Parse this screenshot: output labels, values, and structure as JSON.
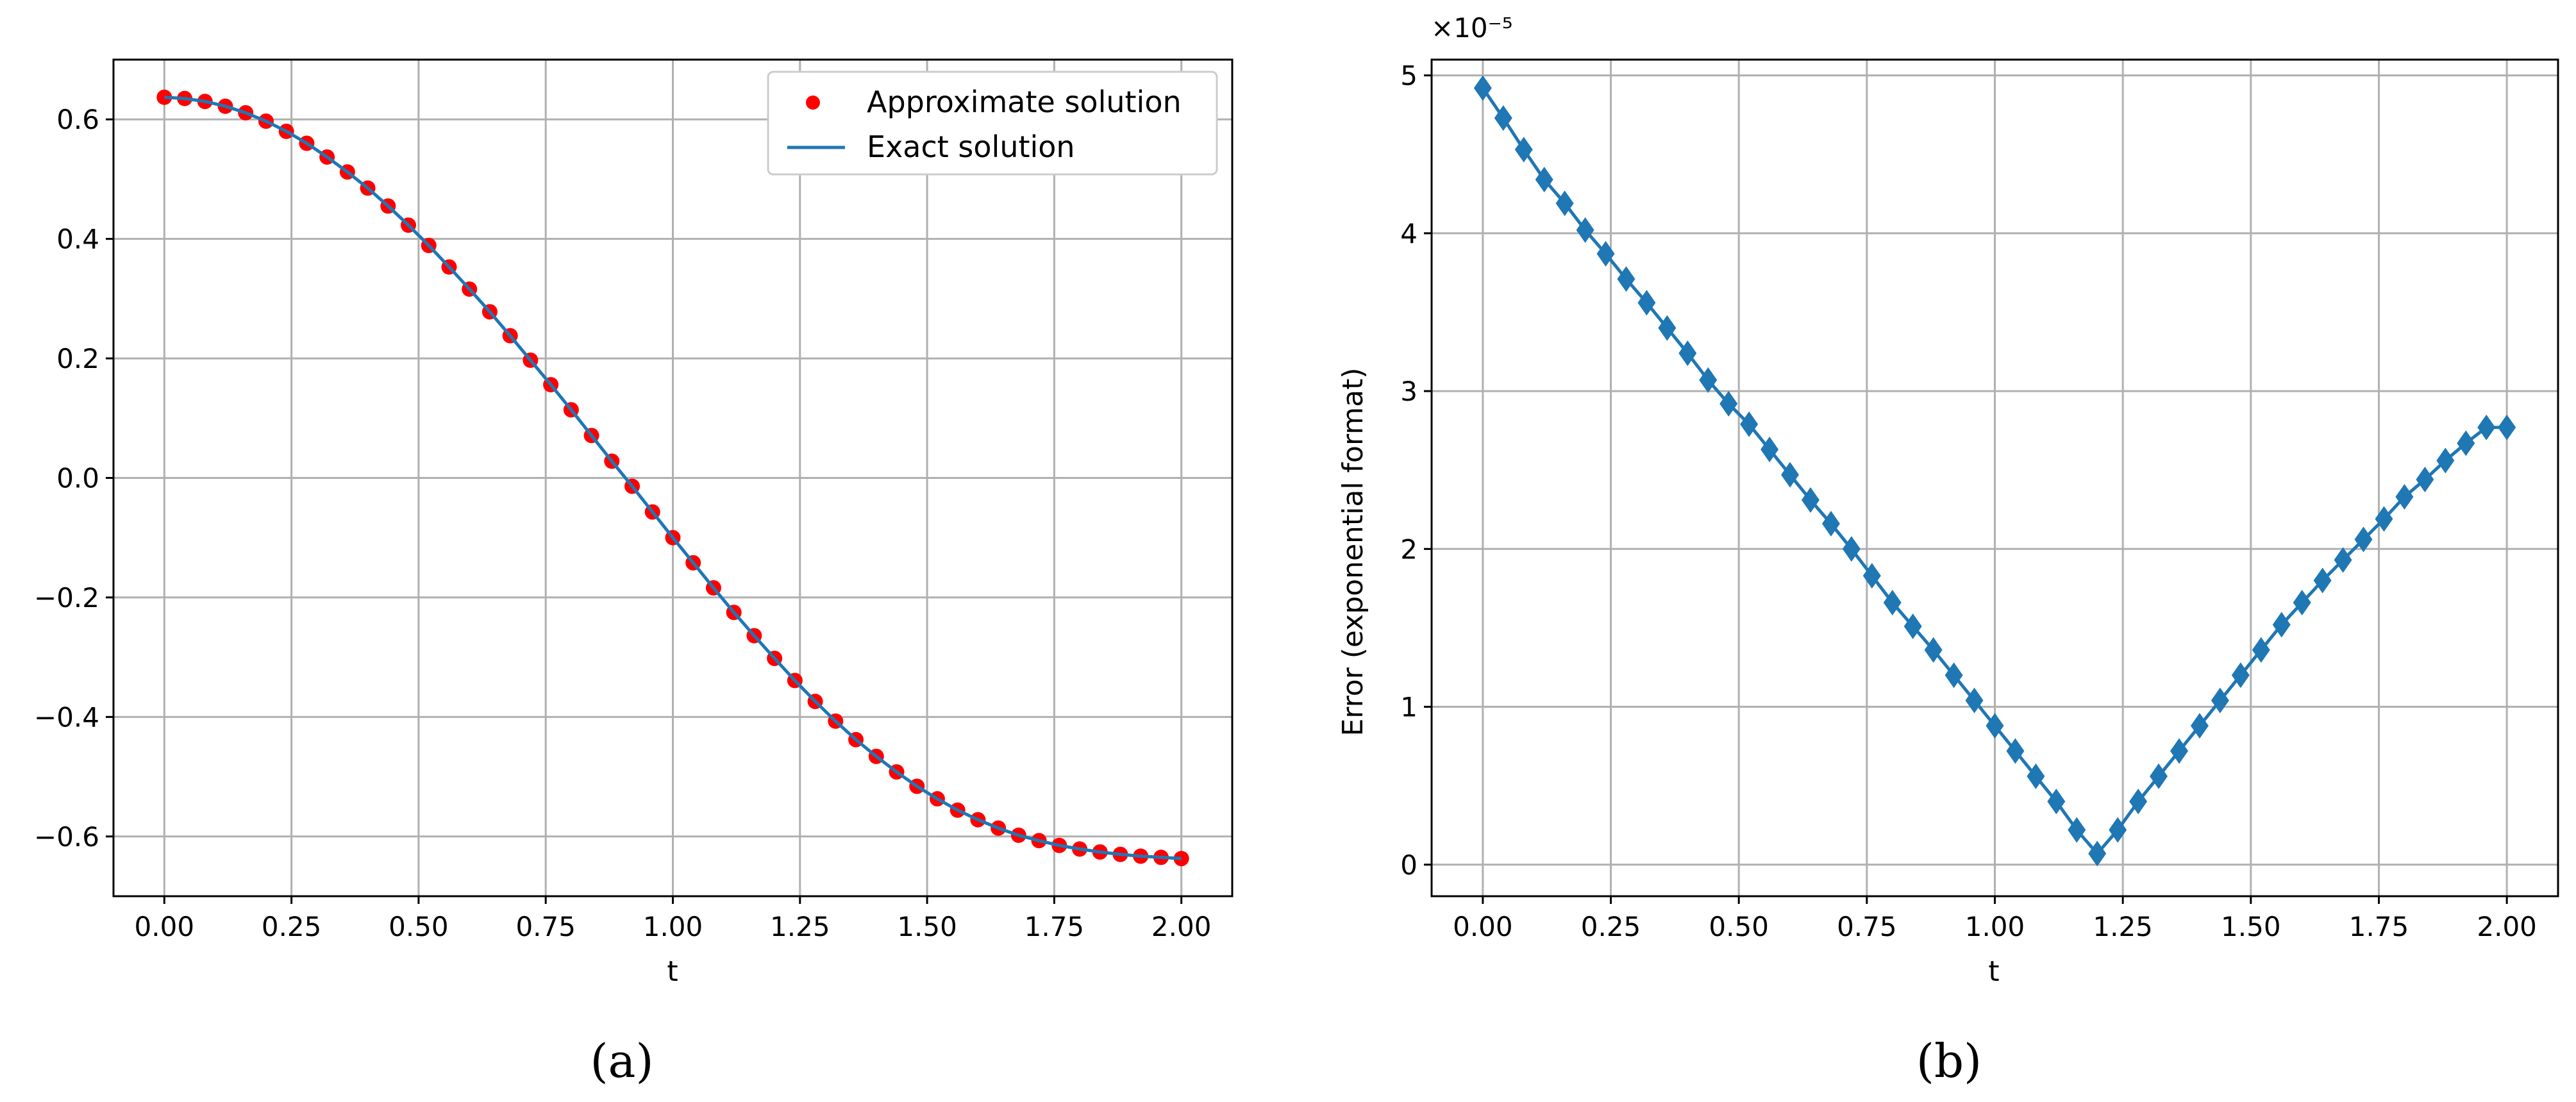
{
  "chart_data": [
    {
      "type": "scatter",
      "panel": "a",
      "caption": "(a)",
      "xlabel": "t",
      "ylabel": "",
      "xlim": [
        -0.1,
        2.1
      ],
      "ylim": [
        -0.7,
        0.7
      ],
      "xticks": [
        "0.00",
        "0.25",
        "0.50",
        "0.75",
        "1.00",
        "1.25",
        "1.50",
        "1.75",
        "2.00"
      ],
      "yticks": [
        "0.6",
        "0.4",
        "0.2",
        "0.0",
        "−0.2",
        "−0.4",
        "−0.6"
      ],
      "grid": true,
      "legend_position": "top-right",
      "series": [
        {
          "name": "Approximate solution",
          "kind": "points",
          "color": "#ff0000",
          "x": [
            0.0,
            0.04,
            0.08,
            0.12,
            0.16,
            0.2,
            0.24,
            0.28,
            0.32,
            0.36,
            0.4,
            0.44,
            0.48,
            0.52,
            0.56,
            0.6,
            0.64,
            0.68,
            0.72,
            0.76,
            0.8,
            0.84,
            0.88,
            0.92,
            0.96,
            1.0,
            1.04,
            1.08,
            1.12,
            1.16,
            1.2,
            1.24,
            1.28,
            1.32,
            1.36,
            1.4,
            1.44,
            1.48,
            1.52,
            1.56,
            1.6,
            1.64,
            1.68,
            1.72,
            1.76,
            1.8,
            1.84,
            1.88,
            1.92,
            1.96,
            2.0
          ],
          "y": [
            0.637,
            0.635,
            0.63,
            0.622,
            0.611,
            0.597,
            0.58,
            0.56,
            0.537,
            0.512,
            0.485,
            0.455,
            0.423,
            0.389,
            0.353,
            0.316,
            0.278,
            0.238,
            0.197,
            0.156,
            0.114,
            0.071,
            0.028,
            -0.014,
            -0.057,
            -0.1,
            -0.142,
            -0.184,
            -0.225,
            -0.264,
            -0.302,
            -0.339,
            -0.374,
            -0.407,
            -0.438,
            -0.466,
            -0.492,
            -0.516,
            -0.537,
            -0.556,
            -0.572,
            -0.586,
            -0.598,
            -0.607,
            -0.615,
            -0.621,
            -0.626,
            -0.63,
            -0.633,
            -0.635,
            -0.637
          ]
        },
        {
          "name": "Exact solution",
          "kind": "line",
          "color": "#1f77b4",
          "x": [
            0.0,
            0.04,
            0.08,
            0.12,
            0.16,
            0.2,
            0.24,
            0.28,
            0.32,
            0.36,
            0.4,
            0.44,
            0.48,
            0.52,
            0.56,
            0.6,
            0.64,
            0.68,
            0.72,
            0.76,
            0.8,
            0.84,
            0.88,
            0.92,
            0.96,
            1.0,
            1.04,
            1.08,
            1.12,
            1.16,
            1.2,
            1.24,
            1.28,
            1.32,
            1.36,
            1.4,
            1.44,
            1.48,
            1.52,
            1.56,
            1.6,
            1.64,
            1.68,
            1.72,
            1.76,
            1.8,
            1.84,
            1.88,
            1.92,
            1.96,
            2.0
          ],
          "y": [
            0.637,
            0.635,
            0.63,
            0.622,
            0.611,
            0.597,
            0.58,
            0.56,
            0.537,
            0.512,
            0.485,
            0.455,
            0.423,
            0.389,
            0.353,
            0.316,
            0.278,
            0.238,
            0.197,
            0.156,
            0.114,
            0.071,
            0.028,
            -0.014,
            -0.057,
            -0.1,
            -0.142,
            -0.184,
            -0.225,
            -0.264,
            -0.302,
            -0.339,
            -0.374,
            -0.407,
            -0.438,
            -0.466,
            -0.492,
            -0.516,
            -0.537,
            -0.556,
            -0.572,
            -0.586,
            -0.598,
            -0.607,
            -0.615,
            -0.621,
            -0.626,
            -0.63,
            -0.633,
            -0.635,
            -0.637
          ]
        }
      ]
    },
    {
      "type": "line",
      "panel": "b",
      "caption": "(b)",
      "xlabel": "t",
      "ylabel": "Error (exponential format)",
      "offset_text": "×10⁻⁵",
      "xlim": [
        -0.1,
        2.1
      ],
      "ylim": [
        -0.2,
        5.1
      ],
      "xticks": [
        "0.00",
        "0.25",
        "0.50",
        "0.75",
        "1.00",
        "1.25",
        "1.50",
        "1.75",
        "2.00"
      ],
      "yticks": [
        "0",
        "1",
        "2",
        "3",
        "4",
        "5"
      ],
      "grid": true,
      "series": [
        {
          "kind": "diamond-line",
          "color": "#1f77b4",
          "x": [
            0.0,
            0.04,
            0.08,
            0.12,
            0.16,
            0.2,
            0.24,
            0.28,
            0.32,
            0.36,
            0.4,
            0.44,
            0.48,
            0.52,
            0.56,
            0.6,
            0.64,
            0.68,
            0.72,
            0.76,
            0.8,
            0.84,
            0.88,
            0.92,
            0.96,
            1.0,
            1.04,
            1.08,
            1.12,
            1.16,
            1.2,
            1.24,
            1.28,
            1.32,
            1.36,
            1.4,
            1.44,
            1.48,
            1.52,
            1.56,
            1.6,
            1.64,
            1.68,
            1.72,
            1.76,
            1.8,
            1.84,
            1.88,
            1.92,
            1.96,
            2.0
          ],
          "y": [
            4.92,
            4.73,
            4.53,
            4.34,
            4.19,
            4.02,
            3.87,
            3.71,
            3.56,
            3.4,
            3.24,
            3.07,
            2.92,
            2.79,
            2.63,
            2.47,
            2.31,
            2.16,
            2.0,
            1.83,
            1.66,
            1.51,
            1.36,
            1.2,
            1.04,
            0.88,
            0.72,
            0.56,
            0.4,
            0.22,
            0.07,
            0.22,
            0.4,
            0.56,
            0.72,
            0.88,
            1.04,
            1.2,
            1.36,
            1.52,
            1.66,
            1.8,
            1.93,
            2.06,
            2.19,
            2.33,
            2.44,
            2.56,
            2.67,
            2.77,
            2.77
          ]
        }
      ]
    }
  ]
}
